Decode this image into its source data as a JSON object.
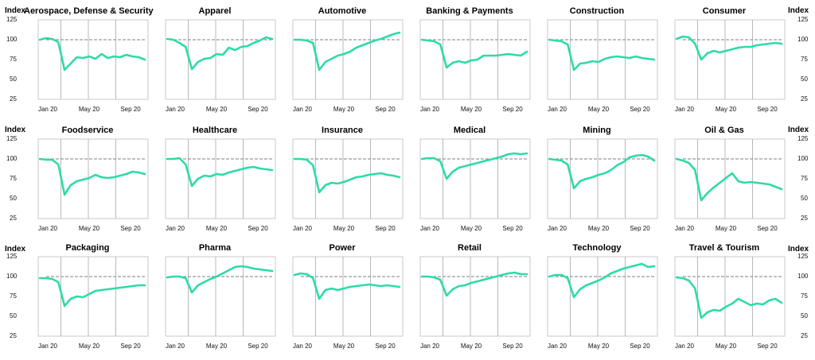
{
  "chart_data": {
    "type": "line",
    "ylabel": "Index",
    "yticks": [
      125,
      100,
      75,
      50,
      25
    ],
    "ylim": [
      25,
      125
    ],
    "xticks": [
      "Jan 20",
      "May 20",
      "Sep 20"
    ],
    "reference": 100,
    "grid": true,
    "line_color": "#2ddba8",
    "reference_color": "#7f7f7f",
    "panels": [
      {
        "title": "Aerospace, Defense & Security",
        "values": [
          100,
          102,
          101,
          97,
          62,
          70,
          78,
          77,
          79,
          76,
          82,
          77,
          79,
          78,
          81,
          79,
          78,
          75
        ]
      },
      {
        "title": "Apparel",
        "values": [
          101,
          100,
          96,
          91,
          63,
          72,
          76,
          77,
          82,
          81,
          90,
          87,
          91,
          92,
          96,
          99,
          103,
          101
        ]
      },
      {
        "title": "Automotive",
        "values": [
          100,
          100,
          99,
          96,
          62,
          72,
          76,
          80,
          82,
          85,
          90,
          93,
          96,
          99,
          101,
          104,
          107,
          109
        ]
      },
      {
        "title": "Banking & Payments",
        "values": [
          100,
          99,
          98,
          94,
          65,
          71,
          73,
          71,
          74,
          75,
          80,
          80,
          80,
          81,
          82,
          81,
          80,
          85
        ]
      },
      {
        "title": "Construction",
        "values": [
          100,
          99,
          98,
          94,
          62,
          70,
          71,
          73,
          72,
          76,
          78,
          79,
          78,
          77,
          79,
          77,
          76,
          75
        ]
      },
      {
        "title": "Consumer",
        "values": [
          101,
          104,
          103,
          95,
          75,
          83,
          86,
          84,
          86,
          88,
          90,
          91,
          91,
          93,
          94,
          95,
          96,
          95
        ]
      },
      {
        "title": "Foodservice",
        "values": [
          100,
          99,
          99,
          93,
          55,
          67,
          72,
          74,
          76,
          80,
          77,
          76,
          77,
          79,
          81,
          84,
          83,
          81
        ]
      },
      {
        "title": "Healthcare",
        "values": [
          100,
          100,
          101,
          93,
          66,
          75,
          79,
          78,
          81,
          80,
          83,
          85,
          87,
          89,
          90,
          88,
          87,
          86
        ]
      },
      {
        "title": "Insurance",
        "values": [
          100,
          100,
          99,
          92,
          58,
          67,
          70,
          69,
          71,
          74,
          77,
          78,
          80,
          81,
          82,
          80,
          79,
          77
        ]
      },
      {
        "title": "Medical",
        "values": [
          100,
          101,
          101,
          97,
          75,
          84,
          89,
          91,
          93,
          95,
          97,
          99,
          101,
          103,
          106,
          107,
          106,
          107
        ]
      },
      {
        "title": "Mining",
        "values": [
          100,
          99,
          98,
          93,
          63,
          72,
          75,
          77,
          80,
          82,
          86,
          92,
          96,
          102,
          104,
          105,
          103,
          98
        ]
      },
      {
        "title": "Oil & Gas",
        "values": [
          100,
          98,
          95,
          86,
          48,
          57,
          64,
          70,
          76,
          82,
          72,
          70,
          71,
          70,
          69,
          68,
          65,
          62
        ]
      },
      {
        "title": "Packaging",
        "values": [
          98,
          98,
          97,
          93,
          63,
          72,
          75,
          74,
          78,
          82,
          83,
          84,
          85,
          86,
          87,
          88,
          89,
          89
        ]
      },
      {
        "title": "Pharma",
        "values": [
          99,
          100,
          100,
          98,
          80,
          89,
          93,
          97,
          100,
          104,
          108,
          112,
          113,
          112,
          110,
          109,
          108,
          107
        ]
      },
      {
        "title": "Power",
        "values": [
          102,
          104,
          103,
          98,
          72,
          83,
          85,
          83,
          85,
          87,
          88,
          89,
          90,
          89,
          88,
          89,
          88,
          87
        ]
      },
      {
        "title": "Retail",
        "values": [
          100,
          100,
          99,
          96,
          76,
          84,
          88,
          89,
          92,
          94,
          96,
          98,
          100,
          102,
          104,
          105,
          103,
          103
        ]
      },
      {
        "title": "Technology",
        "values": [
          100,
          102,
          102,
          98,
          74,
          84,
          89,
          92,
          95,
          99,
          104,
          107,
          110,
          112,
          114,
          116,
          112,
          113
        ]
      },
      {
        "title": "Travel & Tourism",
        "values": [
          99,
          98,
          95,
          85,
          48,
          55,
          58,
          57,
          62,
          66,
          72,
          68,
          64,
          66,
          65,
          70,
          72,
          67
        ]
      }
    ]
  }
}
